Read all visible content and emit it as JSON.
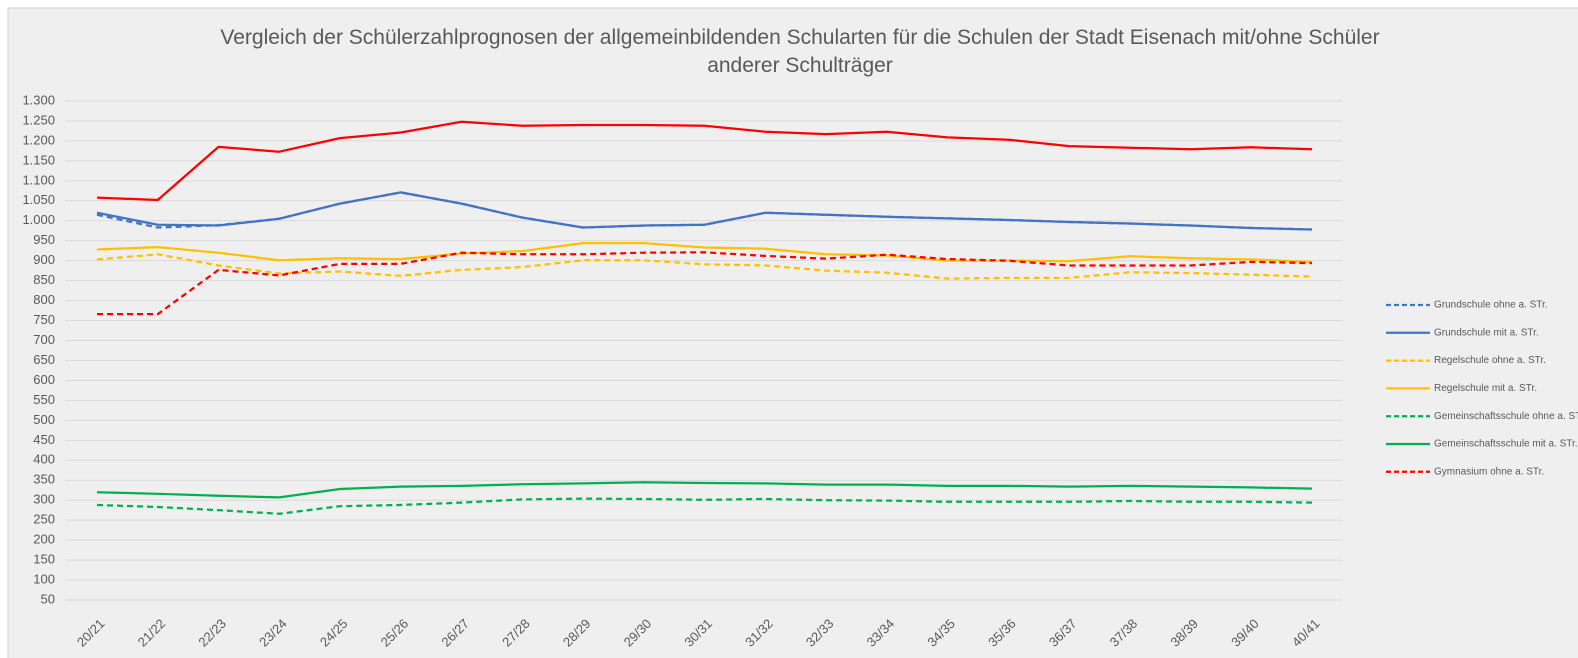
{
  "chart_data": {
    "type": "line",
    "title": "Vergleich der Schülerzahlprognosen der allgemeinbildenden Schularten für die Schulen der Stadt Eisenach mit/ohne Schüler anderer Schulträger",
    "categories": [
      "20/21",
      "21/22",
      "22/23",
      "23/24",
      "24/25",
      "25/26",
      "26/27",
      "27/28",
      "28/29",
      "29/30",
      "30/31",
      "31/32",
      "32/33",
      "33/34",
      "34/35",
      "35/36",
      "36/37",
      "37/38",
      "38/39",
      "39/40",
      "40/41"
    ],
    "ylim": [
      50,
      1300
    ],
    "yticks": [
      50,
      100,
      150,
      200,
      250,
      300,
      350,
      400,
      450,
      500,
      550,
      600,
      650,
      700,
      750,
      800,
      850,
      900,
      950,
      {
        "value": 1000,
        "label": "1.000"
      },
      {
        "value": 1050,
        "label": "1.050"
      },
      {
        "value": 1100,
        "label": "1.100"
      },
      {
        "value": 1150,
        "label": "1.150"
      },
      {
        "value": 1200,
        "label": "1.200"
      },
      {
        "value": 1250,
        "label": "1.250"
      },
      {
        "value": 1300,
        "label": "1.300"
      }
    ],
    "grid": true,
    "legend": "right",
    "series": [
      {
        "name": "Grundschule ohne a. STr.",
        "color": "#4472c4",
        "dashed": true,
        "values": [
          1015,
          983,
          989,
          1005,
          1043,
          1071,
          1043,
          1008,
          983,
          988,
          990,
          1020,
          1015,
          1010,
          1006,
          1002,
          997,
          993,
          988,
          982,
          978
        ]
      },
      {
        "name": "Grundschule mit a. STr.",
        "color": "#4472c4",
        "dashed": false,
        "values": [
          1020,
          990,
          988,
          1005,
          1043,
          1071,
          1043,
          1008,
          983,
          988,
          990,
          1020,
          1015,
          1010,
          1006,
          1002,
          997,
          993,
          988,
          982,
          978
        ]
      },
      {
        "name": "Regelschule ohne a. STr.",
        "color": "#ffc000",
        "dashed": true,
        "values": [
          903,
          916,
          888,
          868,
          873,
          862,
          877,
          884,
          901,
          901,
          891,
          888,
          875,
          870,
          855,
          857,
          857,
          871,
          869,
          865,
          860
        ]
      },
      {
        "name": "Regelschule mit a. STr.",
        "color": "#ffc000",
        "dashed": false,
        "values": [
          928,
          934,
          920,
          901,
          906,
          904,
          918,
          924,
          944,
          944,
          933,
          930,
          916,
          913,
          900,
          900,
          899,
          911,
          906,
          903,
          897
        ]
      },
      {
        "name": "Gemeinschaftsschule ohne a. STr.",
        "color": "#00b050",
        "dashed": true,
        "values": [
          288,
          283,
          275,
          266,
          285,
          288,
          294,
          302,
          304,
          303,
          301,
          303,
          300,
          299,
          296,
          296,
          296,
          298,
          296,
          296,
          294
        ]
      },
      {
        "name": "Gemeinschaftsschule mit a. STr.",
        "color": "#00b050",
        "dashed": false,
        "values": [
          320,
          316,
          311,
          307,
          328,
          334,
          336,
          340,
          342,
          345,
          343,
          342,
          339,
          339,
          336,
          336,
          334,
          336,
          334,
          332,
          329
        ]
      },
      {
        "name": "Gymnasium ohne a. STr.",
        "color": "#ff0000",
        "dashed": true,
        "values": [
          766,
          766,
          877,
          863,
          892,
          892,
          920,
          916,
          916,
          920,
          921,
          912,
          905,
          915,
          904,
          900,
          888,
          888,
          888,
          897,
          894
        ]
      },
      {
        "color": "#ff0000",
        "dashed": false,
        "values": [
          1058,
          1052,
          1185,
          1173,
          1207,
          1221,
          1248,
          1238,
          1240,
          1240,
          1238,
          1223,
          1217,
          1223,
          1209,
          1203,
          1187,
          1183,
          1179,
          1184,
          1179
        ]
      }
    ]
  }
}
